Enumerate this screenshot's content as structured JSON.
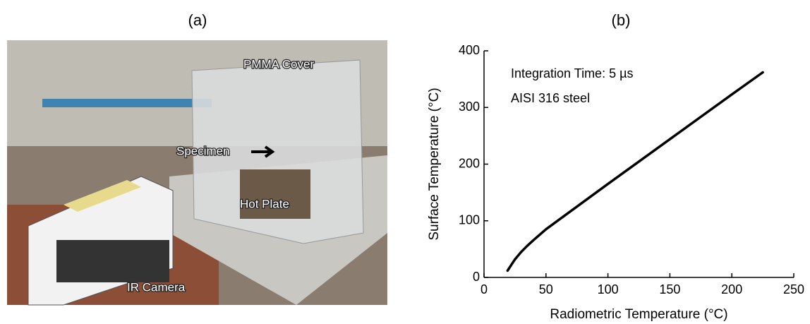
{
  "photo": {
    "label": "(a)",
    "annotations": [
      "PMMA Cover",
      "Specimen",
      "Hot Plate",
      "IR Camera"
    ]
  },
  "chart_data": {
    "type": "line",
    "label": "(b)",
    "x": [
      19,
      22,
      25,
      30,
      35,
      40,
      50,
      60,
      75,
      100,
      150,
      200,
      225
    ],
    "values": [
      12,
      22,
      32,
      45,
      56,
      66,
      85,
      101,
      125,
      165,
      244,
      323,
      362
    ],
    "color": "#000000",
    "xlabel": "Radiometric Temperature (°C)",
    "ylabel": "Surface Temperature (°C)",
    "annotations": [
      "Integration Time: 5 µs",
      "AISI 316 steel"
    ],
    "xlim": [
      0,
      250
    ],
    "ylim": [
      0,
      400
    ],
    "xticks": [
      0,
      50,
      100,
      150,
      200,
      250
    ],
    "yticks": [
      0,
      100,
      200,
      300,
      400
    ]
  }
}
